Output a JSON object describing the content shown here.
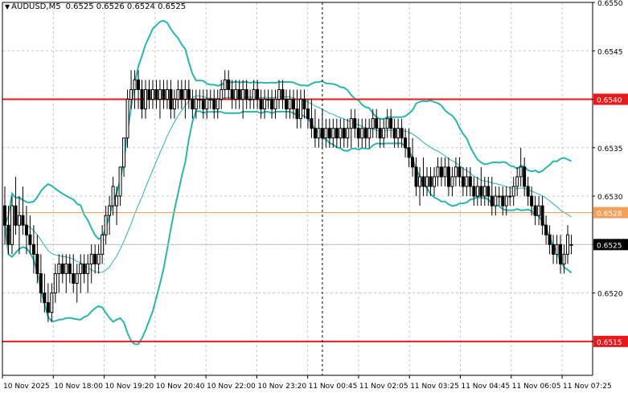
{
  "header": {
    "symbol_tf": "AUDUSD,M5",
    "ohlc": "0.6525 0.6526 0.6524 0.6525"
  },
  "colors": {
    "background": "#ffffff",
    "grid": "#c8c8c8",
    "candle": "#000000",
    "bands": "#2ab5ad",
    "level_line": "#e8191a",
    "mid_level_line": "#f5a05a",
    "current_price_line": "#c0c0c0",
    "current_price_bg": "#000000",
    "current_price_text": "#ffffff"
  },
  "chart_data": {
    "type": "candlestick",
    "symbol": "AUDUSD",
    "timeframe": "M5",
    "ylim": [
      0.65115,
      0.655
    ],
    "y_ticks": [
      "0.6550",
      "0.6545",
      "0.6540",
      "0.6535",
      "0.6530",
      "0.6525",
      "0.6520",
      "0.6515"
    ],
    "x_ticks": [
      "10 Nov 2025",
      "10 Nov 18:00",
      "10 Nov 19:20",
      "10 Nov 20:40",
      "10 Nov 22:00",
      "10 Nov 23:20",
      "11 Nov 00:45",
      "11 Nov 02:05",
      "11 Nov 03:25",
      "11 Nov 04:45",
      "11 Nov 06:05",
      "11 Nov 07:25"
    ],
    "levels": [
      {
        "price": 0.654,
        "label": "0.6540",
        "color": "#e8191a"
      },
      {
        "price": 0.65283,
        "label": "0.6528",
        "color": "#f5a05a"
      },
      {
        "price": 0.6515,
        "label": "0.6515",
        "color": "#e8191a"
      }
    ],
    "current_price": {
      "price": 0.6525,
      "label": "0.6525"
    },
    "vline_category_index": 88,
    "bollinger_period": 20,
    "candles": [
      [
        0.6529,
        0.6531,
        0.6525,
        0.6527
      ],
      [
        0.6527,
        0.6529,
        0.6524,
        0.6525
      ],
      [
        0.6525,
        0.653,
        0.6524,
        0.6529
      ],
      [
        0.6529,
        0.6532,
        0.6526,
        0.6527
      ],
      [
        0.6527,
        0.653,
        0.6524,
        0.6528
      ],
      [
        0.6528,
        0.6531,
        0.6526,
        0.6527
      ],
      [
        0.6527,
        0.6529,
        0.6524,
        0.6526
      ],
      [
        0.6526,
        0.6528,
        0.6524,
        0.6525
      ],
      [
        0.6525,
        0.6527,
        0.6522,
        0.6524
      ],
      [
        0.6524,
        0.6526,
        0.6521,
        0.6522
      ],
      [
        0.6522,
        0.6524,
        0.6519,
        0.652
      ],
      [
        0.652,
        0.6522,
        0.6518,
        0.6519
      ],
      [
        0.6519,
        0.6521,
        0.6517,
        0.6518
      ],
      [
        0.6518,
        0.6521,
        0.6517,
        0.652
      ],
      [
        0.652,
        0.6523,
        0.6519,
        0.6522
      ],
      [
        0.6522,
        0.6524,
        0.652,
        0.6523
      ],
      [
        0.6523,
        0.6524,
        0.6521,
        0.6522
      ],
      [
        0.6522,
        0.6524,
        0.652,
        0.6523
      ],
      [
        0.6523,
        0.6524,
        0.6521,
        0.6522
      ],
      [
        0.6522,
        0.6524,
        0.652,
        0.6521
      ],
      [
        0.6521,
        0.6523,
        0.6519,
        0.6522
      ],
      [
        0.6522,
        0.6524,
        0.652,
        0.6523
      ],
      [
        0.6523,
        0.6524,
        0.6521,
        0.6522
      ],
      [
        0.6522,
        0.6524,
        0.652,
        0.6523
      ],
      [
        0.6523,
        0.6525,
        0.6521,
        0.6524
      ],
      [
        0.6524,
        0.6525,
        0.6522,
        0.6523
      ],
      [
        0.6523,
        0.6525,
        0.6522,
        0.6524
      ],
      [
        0.6524,
        0.6527,
        0.6523,
        0.6526
      ],
      [
        0.6526,
        0.6529,
        0.6525,
        0.6528
      ],
      [
        0.6528,
        0.653,
        0.6526,
        0.6529
      ],
      [
        0.6529,
        0.6532,
        0.6528,
        0.6531
      ],
      [
        0.6529,
        0.6531,
        0.6527,
        0.653
      ],
      [
        0.653,
        0.6533,
        0.6529,
        0.6533
      ],
      [
        0.6533,
        0.6536,
        0.6532,
        0.6536
      ],
      [
        0.6536,
        0.6541,
        0.6535,
        0.654
      ],
      [
        0.654,
        0.6543,
        0.6539,
        0.6541
      ],
      [
        0.6541,
        0.6543,
        0.6539,
        0.6542
      ],
      [
        0.6542,
        0.6543,
        0.6539,
        0.6541
      ],
      [
        0.6541,
        0.6542,
        0.6538,
        0.6539
      ],
      [
        0.6539,
        0.6542,
        0.6538,
        0.6541
      ],
      [
        0.6541,
        0.6542,
        0.6539,
        0.654
      ],
      [
        0.654,
        0.6542,
        0.6539,
        0.6541
      ],
      [
        0.6541,
        0.6542,
        0.6539,
        0.654
      ],
      [
        0.654,
        0.6542,
        0.6538,
        0.6541
      ],
      [
        0.6541,
        0.6542,
        0.6539,
        0.654
      ],
      [
        0.654,
        0.6542,
        0.6539,
        0.6541
      ],
      [
        0.6541,
        0.6542,
        0.6538,
        0.6539
      ],
      [
        0.6539,
        0.6541,
        0.6538,
        0.654
      ],
      [
        0.654,
        0.6542,
        0.6539,
        0.6541
      ],
      [
        0.6541,
        0.6542,
        0.6539,
        0.654
      ],
      [
        0.654,
        0.6542,
        0.6538,
        0.6541
      ],
      [
        0.6541,
        0.6542,
        0.6539,
        0.654
      ],
      [
        0.654,
        0.6541,
        0.6538,
        0.6539
      ],
      [
        0.6539,
        0.6541,
        0.6538,
        0.654
      ],
      [
        0.654,
        0.6541,
        0.6539,
        0.654
      ],
      [
        0.654,
        0.6541,
        0.6538,
        0.6539
      ],
      [
        0.6539,
        0.6541,
        0.6538,
        0.654
      ],
      [
        0.654,
        0.6541,
        0.6539,
        0.654
      ],
      [
        0.654,
        0.6541,
        0.6538,
        0.6539
      ],
      [
        0.6539,
        0.6541,
        0.6538,
        0.654
      ],
      [
        0.654,
        0.6542,
        0.6539,
        0.6541
      ],
      [
        0.6541,
        0.6543,
        0.654,
        0.6542
      ],
      [
        0.6542,
        0.6543,
        0.654,
        0.6541
      ],
      [
        0.6541,
        0.6542,
        0.6539,
        0.654
      ],
      [
        0.654,
        0.6542,
        0.6539,
        0.6541
      ],
      [
        0.6541,
        0.6542,
        0.6539,
        0.654
      ],
      [
        0.654,
        0.6542,
        0.6538,
        0.6541
      ],
      [
        0.6541,
        0.6542,
        0.6539,
        0.654
      ],
      [
        0.654,
        0.6541,
        0.6539,
        0.654
      ],
      [
        0.654,
        0.6542,
        0.6539,
        0.6541
      ],
      [
        0.6541,
        0.6542,
        0.6539,
        0.654
      ],
      [
        0.654,
        0.6541,
        0.6538,
        0.6539
      ],
      [
        0.6539,
        0.6541,
        0.6538,
        0.654
      ],
      [
        0.654,
        0.6541,
        0.6539,
        0.654
      ],
      [
        0.654,
        0.6541,
        0.6538,
        0.6539
      ],
      [
        0.6539,
        0.6541,
        0.6538,
        0.654
      ],
      [
        0.654,
        0.6542,
        0.6539,
        0.6541
      ],
      [
        0.6541,
        0.6542,
        0.6539,
        0.654
      ],
      [
        0.654,
        0.6541,
        0.6538,
        0.6539
      ],
      [
        0.6539,
        0.6541,
        0.6538,
        0.654
      ],
      [
        0.654,
        0.6541,
        0.6538,
        0.6539
      ],
      [
        0.6539,
        0.6541,
        0.6537,
        0.6538
      ],
      [
        0.6538,
        0.6541,
        0.6537,
        0.654
      ],
      [
        0.654,
        0.6541,
        0.6538,
        0.6539
      ],
      [
        0.6539,
        0.654,
        0.6537,
        0.6538
      ],
      [
        0.6538,
        0.654,
        0.6536,
        0.6537
      ],
      [
        0.6537,
        0.6539,
        0.6535,
        0.6536
      ],
      [
        0.6536,
        0.6538,
        0.6535,
        0.6537
      ],
      [
        0.6537,
        0.6539,
        0.6535,
        0.6536
      ],
      [
        0.6536,
        0.6538,
        0.6535,
        0.6537
      ],
      [
        0.6537,
        0.6538,
        0.6535,
        0.6536
      ],
      [
        0.6536,
        0.6538,
        0.6535,
        0.6537
      ],
      [
        0.6537,
        0.6538,
        0.6535,
        0.6536
      ],
      [
        0.6536,
        0.6538,
        0.6535,
        0.6537
      ],
      [
        0.6537,
        0.6538,
        0.6535,
        0.6536
      ],
      [
        0.6536,
        0.6538,
        0.6535,
        0.6537
      ],
      [
        0.6537,
        0.6539,
        0.6535,
        0.6538
      ],
      [
        0.6538,
        0.6539,
        0.6536,
        0.6537
      ],
      [
        0.6537,
        0.6538,
        0.6535,
        0.6536
      ],
      [
        0.6536,
        0.6538,
        0.6535,
        0.6537
      ],
      [
        0.6537,
        0.6538,
        0.6535,
        0.6536
      ],
      [
        0.6536,
        0.6538,
        0.6535,
        0.6537
      ],
      [
        0.6537,
        0.6539,
        0.6536,
        0.6538
      ],
      [
        0.6538,
        0.6539,
        0.6536,
        0.6537
      ],
      [
        0.6537,
        0.6538,
        0.6535,
        0.6536
      ],
      [
        0.6536,
        0.6538,
        0.6535,
        0.6537
      ],
      [
        0.6537,
        0.6539,
        0.6536,
        0.6538
      ],
      [
        0.6538,
        0.6539,
        0.6536,
        0.6537
      ],
      [
        0.6537,
        0.6538,
        0.6535,
        0.6536
      ],
      [
        0.6536,
        0.6538,
        0.6535,
        0.6537
      ],
      [
        0.6537,
        0.6538,
        0.6535,
        0.6536
      ],
      [
        0.6536,
        0.6537,
        0.6534,
        0.6535
      ],
      [
        0.6535,
        0.6537,
        0.6533,
        0.6534
      ],
      [
        0.6534,
        0.6536,
        0.6532,
        0.6533
      ],
      [
        0.6533,
        0.6534,
        0.653,
        0.6531
      ],
      [
        0.6531,
        0.6533,
        0.6529,
        0.6532
      ],
      [
        0.6532,
        0.6534,
        0.653,
        0.6531
      ],
      [
        0.6531,
        0.6533,
        0.653,
        0.6532
      ],
      [
        0.6532,
        0.6533,
        0.653,
        0.6531
      ],
      [
        0.6531,
        0.6533,
        0.653,
        0.6532
      ],
      [
        0.6532,
        0.6534,
        0.6531,
        0.6533
      ],
      [
        0.6533,
        0.6534,
        0.6531,
        0.6532
      ],
      [
        0.6532,
        0.6534,
        0.6531,
        0.6533
      ],
      [
        0.6533,
        0.6534,
        0.653,
        0.6531
      ],
      [
        0.6531,
        0.6533,
        0.653,
        0.6532
      ],
      [
        0.6532,
        0.6534,
        0.6531,
        0.6533
      ],
      [
        0.6533,
        0.6534,
        0.6531,
        0.6532
      ],
      [
        0.6532,
        0.6533,
        0.653,
        0.6531
      ],
      [
        0.6531,
        0.6533,
        0.653,
        0.6532
      ],
      [
        0.6532,
        0.6533,
        0.653,
        0.6531
      ],
      [
        0.6531,
        0.6532,
        0.6529,
        0.653
      ],
      [
        0.653,
        0.6532,
        0.6529,
        0.6531
      ],
      [
        0.6531,
        0.6533,
        0.6529,
        0.653
      ],
      [
        0.653,
        0.6532,
        0.6529,
        0.6531
      ],
      [
        0.6531,
        0.6532,
        0.6529,
        0.653
      ],
      [
        0.653,
        0.6532,
        0.6528,
        0.6529
      ],
      [
        0.6529,
        0.6531,
        0.6528,
        0.653
      ],
      [
        0.653,
        0.6531,
        0.6529,
        0.653
      ],
      [
        0.653,
        0.6531,
        0.6528,
        0.6529
      ],
      [
        0.6529,
        0.6531,
        0.6528,
        0.653
      ],
      [
        0.653,
        0.6531,
        0.6529,
        0.653
      ],
      [
        0.653,
        0.6532,
        0.6529,
        0.6531
      ],
      [
        0.6531,
        0.6533,
        0.653,
        0.6532
      ],
      [
        0.6532,
        0.6535,
        0.6531,
        0.6533
      ],
      [
        0.6533,
        0.6534,
        0.653,
        0.6531
      ],
      [
        0.6531,
        0.6532,
        0.6529,
        0.653
      ],
      [
        0.653,
        0.6531,
        0.6528,
        0.6529
      ],
      [
        0.6529,
        0.653,
        0.6527,
        0.6528
      ],
      [
        0.6528,
        0.653,
        0.6527,
        0.6529
      ],
      [
        0.6529,
        0.653,
        0.6526,
        0.6527
      ],
      [
        0.6527,
        0.6528,
        0.6525,
        0.6526
      ],
      [
        0.6526,
        0.6527,
        0.6524,
        0.6525
      ],
      [
        0.6525,
        0.6526,
        0.6523,
        0.6524
      ],
      [
        0.6524,
        0.6526,
        0.6523,
        0.6525
      ],
      [
        0.6525,
        0.6526,
        0.6522,
        0.6523
      ],
      [
        0.6523,
        0.6525,
        0.6522,
        0.6524
      ],
      [
        0.6524,
        0.6527,
        0.6523,
        0.6526
      ],
      [
        0.6525,
        0.6526,
        0.6524,
        0.6525
      ]
    ]
  }
}
